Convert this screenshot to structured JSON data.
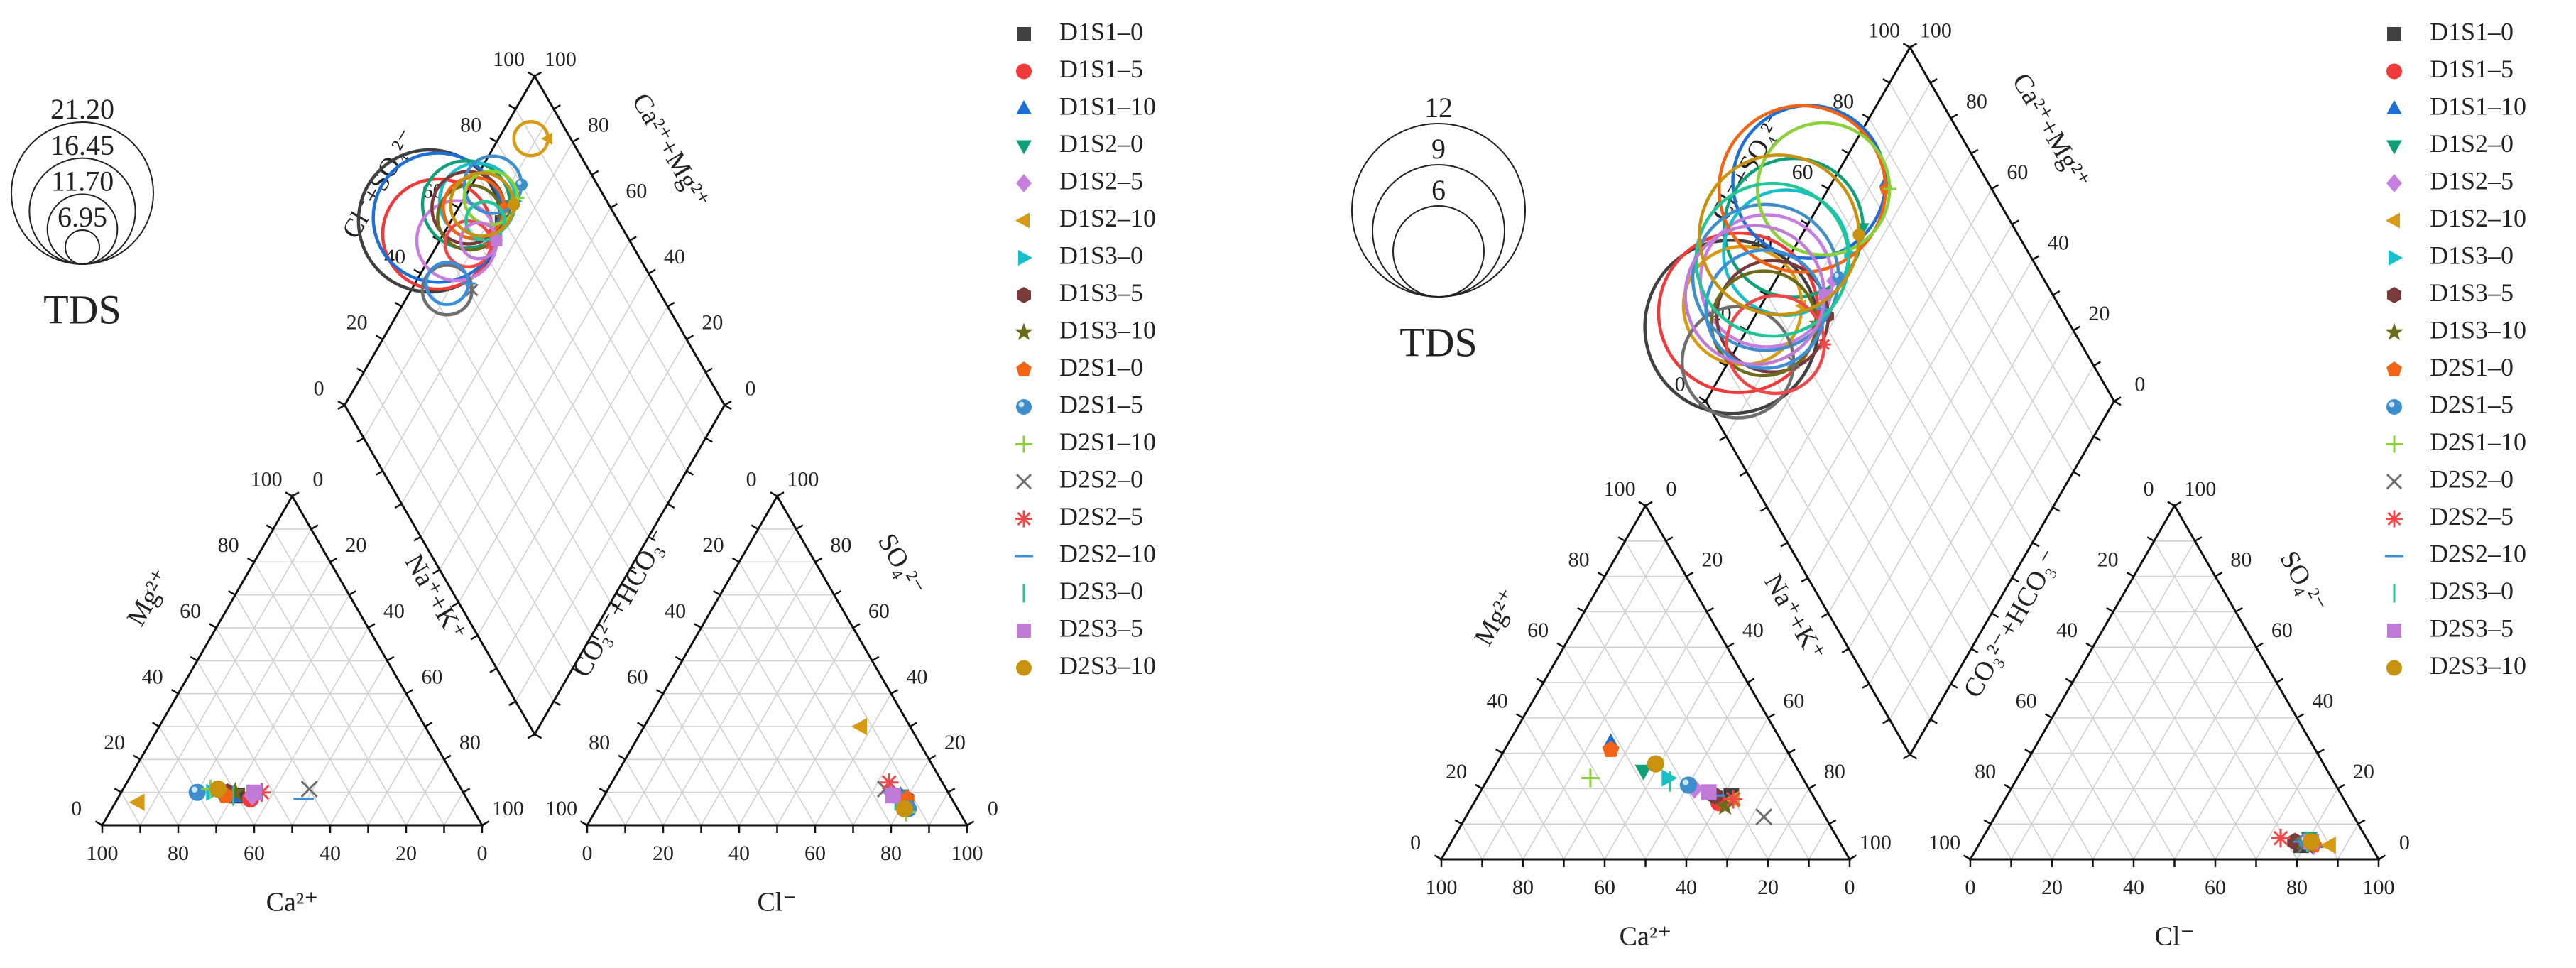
{
  "tick_values": [
    "0",
    "20",
    "40",
    "60",
    "80",
    "100"
  ],
  "axis_labels": {
    "cations_bottom": "Ca²⁺",
    "cations_left": "Mg²⁺",
    "cations_right": "Na⁺+K⁺",
    "anions_bottom": "Cl⁻",
    "anions_left": "CO₃²⁻+HCO₃⁻",
    "anions_right": "SO₄²⁻",
    "diamond_left": "Cl⁻+SO₄²⁻",
    "diamond_right": "Ca²⁺+Mg²⁺"
  },
  "legend": [
    {
      "name": "D1S1–0",
      "symbol": "square",
      "color": "#404040"
    },
    {
      "name": "D1S1–5",
      "symbol": "circle",
      "color": "#f03a3a"
    },
    {
      "name": "D1S1–10",
      "symbol": "triangle-up",
      "color": "#1d6fd6"
    },
    {
      "name": "D1S2–0",
      "symbol": "triangle-down",
      "color": "#0fa07a"
    },
    {
      "name": "D1S2–5",
      "symbol": "diamond",
      "color": "#c77ee0"
    },
    {
      "name": "D1S2–10",
      "symbol": "triangle-left",
      "color": "#d89a12"
    },
    {
      "name": "D1S3–0",
      "symbol": "triangle-right",
      "color": "#16bfcc"
    },
    {
      "name": "D1S3–5",
      "symbol": "hexagon",
      "color": "#7a3a3a"
    },
    {
      "name": "D1S3–10",
      "symbol": "star",
      "color": "#6b6b1a"
    },
    {
      "name": "D2S1–0",
      "symbol": "pentagon",
      "color": "#f06414"
    },
    {
      "name": "D2S1–5",
      "symbol": "sphere",
      "color": "#3d8ecb"
    },
    {
      "name": "D2S1–10",
      "symbol": "plus",
      "color": "#8ad03a"
    },
    {
      "name": "D2S2–0",
      "symbol": "cross",
      "color": "#6e6e6e"
    },
    {
      "name": "D2S2–5",
      "symbol": "asterisk",
      "color": "#f04848"
    },
    {
      "name": "D2S2–10",
      "symbol": "hline",
      "color": "#3a8fd8"
    },
    {
      "name": "D2S3–0",
      "symbol": "vline",
      "color": "#22c49a"
    },
    {
      "name": "D2S3–5",
      "symbol": "square",
      "color": "#c07ad8"
    },
    {
      "name": "D2S3–10",
      "symbol": "circle",
      "color": "#c8920e"
    }
  ],
  "chart_data": [
    {
      "type": "scatter",
      "subtype": "piper",
      "tds_title": "TDS",
      "tds_legend_values": [
        "21.20",
        "16.45",
        "11.70",
        "6.95"
      ],
      "tds_range": [
        6.95,
        21.2
      ],
      "samples": [
        {
          "name": "D1S1–0",
          "cation": {
            "ca": 60,
            "mg": 9,
            "nak": 31
          },
          "anion": {
            "cl": 80,
            "so4": 7,
            "co3hco3": 13
          },
          "tds": 21.2
        },
        {
          "name": "D1S1–5",
          "cation": {
            "ca": 57,
            "mg": 8,
            "nak": 35
          },
          "anion": {
            "cl": 79,
            "so4": 8,
            "co3hco3": 13
          },
          "tds": 17.0
        },
        {
          "name": "D1S1–10",
          "cation": {
            "ca": 61,
            "mg": 9,
            "nak": 30
          },
          "anion": {
            "cl": 78,
            "so4": 9,
            "co3hco3": 13
          },
          "tds": 19.5
        },
        {
          "name": "D1S2–0",
          "cation": {
            "ca": 64,
            "mg": 10,
            "nak": 26
          },
          "anion": {
            "cl": 78,
            "so4": 9,
            "co3hco3": 13
          },
          "tds": 14.0
        },
        {
          "name": "D1S2–5",
          "cation": {
            "ca": 56,
            "mg": 9,
            "nak": 35
          },
          "anion": {
            "cl": 75,
            "so4": 10,
            "co3hco3": 15
          },
          "tds": 13.0
        },
        {
          "name": "D1S2–10",
          "cation": {
            "ca": 87,
            "mg": 7,
            "nak": 6
          },
          "anion": {
            "cl": 57,
            "so4": 30,
            "co3hco3": 13
          },
          "tds": 6.95
        },
        {
          "name": "D1S3–0",
          "cation": {
            "ca": 66,
            "mg": 10,
            "nak": 24
          },
          "anion": {
            "cl": 79,
            "so4": 7,
            "co3hco3": 14
          },
          "tds": 12.5
        },
        {
          "name": "D1S3–5",
          "cation": {
            "ca": 62,
            "mg": 10,
            "nak": 28
          },
          "anion": {
            "cl": 80,
            "so4": 8,
            "co3hco3": 12
          },
          "tds": 12.0
        },
        {
          "name": "D1S3–10",
          "cation": {
            "ca": 60,
            "mg": 10,
            "nak": 30
          },
          "anion": {
            "cl": 79,
            "so4": 8,
            "co3hco3": 13
          },
          "tds": 11.0
        },
        {
          "name": "D2S1–0",
          "cation": {
            "ca": 63,
            "mg": 9,
            "nak": 28
          },
          "anion": {
            "cl": 80,
            "so4": 8,
            "co3hco3": 12
          },
          "tds": 10.5
        },
        {
          "name": "D2S1–5",
          "cation": {
            "ca": 70,
            "mg": 10,
            "nak": 20
          },
          "anion": {
            "cl": 82,
            "so4": 5,
            "co3hco3": 13
          },
          "tds": 10.0
        },
        {
          "name": "D2S1–10",
          "cation": {
            "ca": 66,
            "mg": 11,
            "nak": 23
          },
          "anion": {
            "cl": 82,
            "so4": 4,
            "co3hco3": 14
          },
          "tds": 9.5
        },
        {
          "name": "D2S2–0",
          "cation": {
            "ca": 40,
            "mg": 11,
            "nak": 49
          },
          "anion": {
            "cl": 73,
            "so4": 11,
            "co3hco3": 16
          },
          "tds": 9.0
        },
        {
          "name": "D2S2–5",
          "cation": {
            "ca": 53,
            "mg": 10,
            "nak": 37
          },
          "anion": {
            "cl": 73,
            "so4": 13,
            "co3hco3": 14
          },
          "tds": 8.5
        },
        {
          "name": "D2S2–10",
          "cation": {
            "ca": 43,
            "mg": 8,
            "nak": 49
          },
          "anion": {
            "cl": 76,
            "so4": 10,
            "co3hco3": 14
          },
          "tds": 8.0
        },
        {
          "name": "D2S3–0",
          "cation": {
            "ca": 61,
            "mg": 9,
            "nak": 30
          },
          "anion": {
            "cl": 78,
            "so4": 8,
            "co3hco3": 14
          },
          "tds": 7.5
        },
        {
          "name": "D2S3–5",
          "cation": {
            "ca": 55,
            "mg": 10,
            "nak": 35
          },
          "anion": {
            "cl": 76,
            "so4": 9,
            "co3hco3": 15
          },
          "tds": 7.2
        },
        {
          "name": "D2S3–10",
          "cation": {
            "ca": 64,
            "mg": 11,
            "nak": 25
          },
          "anion": {
            "cl": 81,
            "so4": 5,
            "co3hco3": 14
          },
          "tds": 10.8
        }
      ]
    },
    {
      "type": "scatter",
      "subtype": "piper",
      "tds_title": "TDS",
      "tds_legend_values": [
        "12",
        "9",
        "6"
      ],
      "tds_range": [
        6,
        12
      ],
      "samples": [
        {
          "name": "D1S1–0",
          "cation": {
            "ca": 20,
            "mg": 18,
            "nak": 62
          },
          "anion": {
            "cl": 79,
            "so4": 4,
            "co3hco3": 17
          },
          "tds": 12.0
        },
        {
          "name": "D1S1–5",
          "cation": {
            "ca": 24,
            "mg": 16,
            "nak": 60
          },
          "anion": {
            "cl": 80,
            "so4": 5,
            "co3hco3": 15
          },
          "tds": 11.0
        },
        {
          "name": "D1S1–10",
          "cation": {
            "ca": 42,
            "mg": 33,
            "nak": 25
          },
          "anion": {
            "cl": 82,
            "so4": 5,
            "co3hco3": 13
          },
          "tds": 10.5
        },
        {
          "name": "D1S2–0",
          "cation": {
            "ca": 38,
            "mg": 25,
            "nak": 37
          },
          "anion": {
            "cl": 80,
            "so4": 6,
            "co3hco3": 14
          },
          "tds": 9.5
        },
        {
          "name": "D1S2–5",
          "cation": {
            "ca": 28,
            "mg": 20,
            "nak": 52
          },
          "anion": {
            "cl": 82,
            "so4": 4,
            "co3hco3": 14
          },
          "tds": 9.0
        },
        {
          "name": "D1S2–10",
          "cation": {
            "ca": 20,
            "mg": 17,
            "nak": 63
          },
          "anion": {
            "cl": 86,
            "so4": 4,
            "co3hco3": 10
          },
          "tds": 8.0
        },
        {
          "name": "D1S3–0",
          "cation": {
            "ca": 33,
            "mg": 23,
            "nak": 44
          },
          "anion": {
            "cl": 81,
            "so4": 5,
            "co3hco3": 14
          },
          "tds": 8.5
        },
        {
          "name": "D1S3–5",
          "cation": {
            "ca": 24,
            "mg": 18,
            "nak": 58
          },
          "anion": {
            "cl": 77,
            "so4": 5,
            "co3hco3": 18
          },
          "tds": 7.5
        },
        {
          "name": "D1S3–10",
          "cation": {
            "ca": 23,
            "mg": 15,
            "nak": 62
          },
          "anion": {
            "cl": 79,
            "so4": 5,
            "co3hco3": 16
          },
          "tds": 7.0
        },
        {
          "name": "D2S1–0",
          "cation": {
            "ca": 43,
            "mg": 31,
            "nak": 26
          },
          "anion": {
            "cl": 82,
            "so4": 4,
            "co3hco3": 14
          },
          "tds": 11.5
        },
        {
          "name": "D2S1–5",
          "cation": {
            "ca": 29,
            "mg": 21,
            "nak": 50
          },
          "anion": {
            "cl": 80,
            "so4": 5,
            "co3hco3": 15
          },
          "tds": 10.0
        },
        {
          "name": "D2S1–10",
          "cation": {
            "ca": 52,
            "mg": 23,
            "nak": 25
          },
          "anion": {
            "cl": 80,
            "so4": 5,
            "co3hco3": 15
          },
          "tds": 9.0
        },
        {
          "name": "D2S2–0",
          "cation": {
            "ca": 15,
            "mg": 12,
            "nak": 73
          },
          "anion": {
            "cl": 80,
            "so4": 4,
            "co3hco3": 16
          },
          "tds": 7.5
        },
        {
          "name": "D2S2–5",
          "cation": {
            "ca": 20,
            "mg": 17,
            "nak": 63
          },
          "anion": {
            "cl": 73,
            "so4": 6,
            "co3hco3": 21
          },
          "tds": 6.5
        },
        {
          "name": "D2S2–10",
          "cation": {
            "ca": 24,
            "mg": 18,
            "nak": 58
          },
          "anion": {
            "cl": 79,
            "so4": 5,
            "co3hco3": 16
          },
          "tds": 8.0
        },
        {
          "name": "D2S3–0",
          "cation": {
            "ca": 33,
            "mg": 22,
            "nak": 45
          },
          "anion": {
            "cl": 80,
            "so4": 5,
            "co3hco3": 15
          },
          "tds": 10.5
        },
        {
          "name": "D2S3–5",
          "cation": {
            "ca": 25,
            "mg": 19,
            "nak": 56
          },
          "anion": {
            "cl": 81,
            "so4": 5,
            "co3hco3": 14
          },
          "tds": 9.5
        },
        {
          "name": "D2S3–10",
          "cation": {
            "ca": 34,
            "mg": 27,
            "nak": 39
          },
          "anion": {
            "cl": 81,
            "so4": 5,
            "co3hco3": 14
          },
          "tds": 11.0
        }
      ]
    }
  ]
}
